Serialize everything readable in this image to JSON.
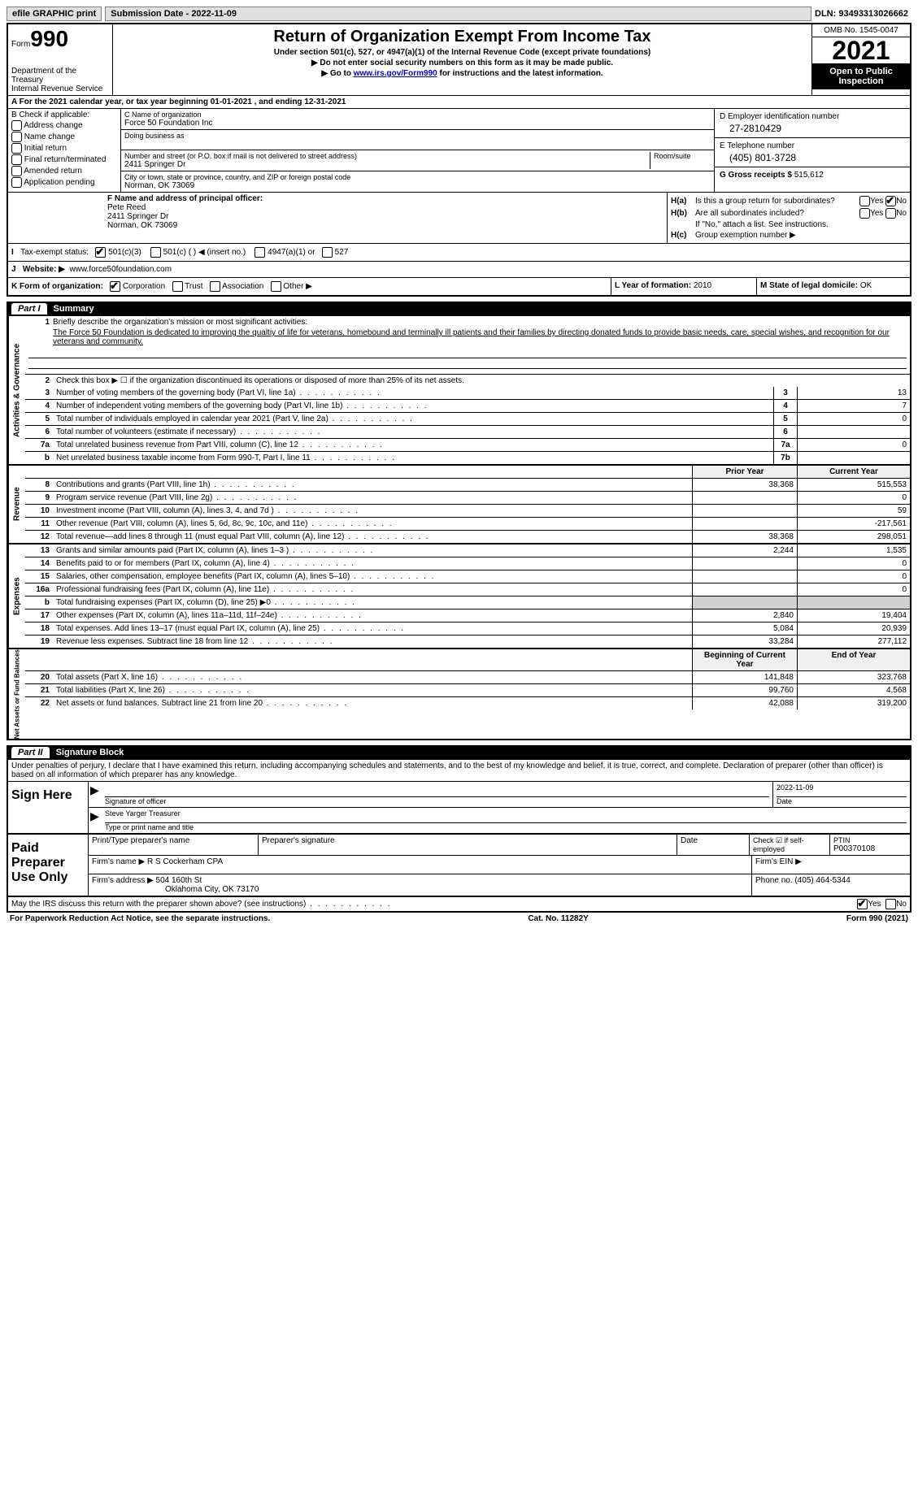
{
  "topbar": {
    "efile_label": "efile GRAPHIC print",
    "submission_label": "Submission Date - 2022-11-09",
    "dln": "DLN: 93493313026662"
  },
  "header": {
    "form_label": "Form",
    "form_number": "990",
    "dept": "Department of the Treasury",
    "irs": "Internal Revenue Service",
    "title": "Return of Organization Exempt From Income Tax",
    "subtitle": "Under section 501(c), 527, or 4947(a)(1) of the Internal Revenue Code (except private foundations)",
    "line1": "▶ Do not enter social security numbers on this form as it may be made public.",
    "line2_pre": "▶ Go to ",
    "line2_link": "www.irs.gov/Form990",
    "line2_post": " for instructions and the latest information.",
    "omb": "OMB No. 1545-0047",
    "year": "2021",
    "open": "Open to Public Inspection"
  },
  "row_a": "A For the 2021 calendar year, or tax year beginning 01-01-2021   , and ending 12-31-2021",
  "box_b": {
    "header": "B Check if applicable:",
    "items": [
      "Address change",
      "Name change",
      "Initial return",
      "Final return/terminated",
      "Amended return",
      "Application pending"
    ]
  },
  "box_c": {
    "name_label": "C Name of organization",
    "name": "Force 50 Foundation Inc",
    "dba_label": "Doing business as",
    "street_label": "Number and street (or P.O. box if mail is not delivered to street address)",
    "room_label": "Room/suite",
    "street": "2411 Springer Dr",
    "city_label": "City or town, state or province, country, and ZIP or foreign postal code",
    "city": "Norman, OK  73069"
  },
  "box_d": {
    "ein_label": "D Employer identification number",
    "ein": "27-2810429",
    "phone_label": "E Telephone number",
    "phone": "(405) 801-3728",
    "gross_label": "G Gross receipts $ ",
    "gross": "515,612"
  },
  "box_f": {
    "label": "F Name and address of principal officer:",
    "name": "Pete Reed",
    "addr1": "2411 Springer Dr",
    "addr2": "Norman, OK  73069"
  },
  "box_h": {
    "ha_label": "H(a)",
    "ha_text": "Is this a group return for subordinates?",
    "hb_label": "H(b)",
    "hb_text": "Are all subordinates included?",
    "hb_note": "If \"No,\" attach a list. See instructions.",
    "hc_label": "H(c)",
    "hc_text": "Group exemption number ▶",
    "yes": "Yes",
    "no": "No"
  },
  "row_i": {
    "label": "Tax-exempt status:",
    "opt1": "501(c)(3)",
    "opt2": "501(c) (  ) ◀ (insert no.)",
    "opt3": "4947(a)(1) or",
    "opt4": "527"
  },
  "row_j": {
    "label": "Website: ▶",
    "value": "www.force50foundation.com"
  },
  "row_k": {
    "label": "K Form of organization:",
    "opts": [
      "Corporation",
      "Trust",
      "Association",
      "Other ▶"
    ]
  },
  "row_l": {
    "label": "L Year of formation: ",
    "value": "2010"
  },
  "row_m": {
    "label": "M State of legal domicile: ",
    "value": "OK"
  },
  "part1": {
    "label": "Part I",
    "title": "Summary",
    "tab1": "Activities & Governance",
    "tab2": "Revenue",
    "tab3": "Expenses",
    "tab4": "Net Assets or Fund Balances",
    "q1": "Briefly describe the organization's mission or most significant activities:",
    "mission": "The Force 50 Foundation is dedicated to improving the qualtiy of life for veterans, homebound and terminally ill patients and their families by directing donated funds to provide basic needs, care, special wishes, and recognition for our veterans and community.",
    "q2": "Check this box ▶ ☐ if the organization discontinued its operations or disposed of more than 25% of its net assets.",
    "rows_gov": [
      {
        "n": "3",
        "t": "Number of voting members of the governing body (Part VI, line 1a)",
        "box": "3",
        "v": "13"
      },
      {
        "n": "4",
        "t": "Number of independent voting members of the governing body (Part VI, line 1b)",
        "box": "4",
        "v": "7"
      },
      {
        "n": "5",
        "t": "Total number of individuals employed in calendar year 2021 (Part V, line 2a)",
        "box": "5",
        "v": "0"
      },
      {
        "n": "6",
        "t": "Total number of volunteers (estimate if necessary)",
        "box": "6",
        "v": ""
      },
      {
        "n": "7a",
        "t": "Total unrelated business revenue from Part VIII, column (C), line 12",
        "box": "7a",
        "v": "0"
      },
      {
        "n": "b",
        "t": "Net unrelated business taxable income from Form 990-T, Part I, line 11",
        "box": "7b",
        "v": ""
      }
    ],
    "prior_year": "Prior Year",
    "current_year": "Current Year",
    "rows_rev": [
      {
        "n": "8",
        "t": "Contributions and grants (Part VIII, line 1h)",
        "py": "38,368",
        "cy": "515,553"
      },
      {
        "n": "9",
        "t": "Program service revenue (Part VIII, line 2g)",
        "py": "",
        "cy": "0"
      },
      {
        "n": "10",
        "t": "Investment income (Part VIII, column (A), lines 3, 4, and 7d )",
        "py": "",
        "cy": "59"
      },
      {
        "n": "11",
        "t": "Other revenue (Part VIII, column (A), lines 5, 6d, 8c, 9c, 10c, and 11e)",
        "py": "",
        "cy": "-217,561"
      },
      {
        "n": "12",
        "t": "Total revenue—add lines 8 through 11 (must equal Part VIII, column (A), line 12)",
        "py": "38,368",
        "cy": "298,051"
      }
    ],
    "rows_exp": [
      {
        "n": "13",
        "t": "Grants and similar amounts paid (Part IX, column (A), lines 1–3 )",
        "py": "2,244",
        "cy": "1,535"
      },
      {
        "n": "14",
        "t": "Benefits paid to or for members (Part IX, column (A), line 4)",
        "py": "",
        "cy": "0"
      },
      {
        "n": "15",
        "t": "Salaries, other compensation, employee benefits (Part IX, column (A), lines 5–10)",
        "py": "",
        "cy": "0"
      },
      {
        "n": "16a",
        "t": "Professional fundraising fees (Part IX, column (A), line 11e)",
        "py": "",
        "cy": "0"
      },
      {
        "n": "b",
        "t": "Total fundraising expenses (Part IX, column (D), line 25) ▶0",
        "py": "grey",
        "cy": "grey"
      },
      {
        "n": "17",
        "t": "Other expenses (Part IX, column (A), lines 11a–11d, 11f–24e)",
        "py": "2,840",
        "cy": "19,404"
      },
      {
        "n": "18",
        "t": "Total expenses. Add lines 13–17 (must equal Part IX, column (A), line 25)",
        "py": "5,084",
        "cy": "20,939"
      },
      {
        "n": "19",
        "t": "Revenue less expenses. Subtract line 18 from line 12",
        "py": "33,284",
        "cy": "277,112"
      }
    ],
    "beg_year": "Beginning of Current Year",
    "end_year": "End of Year",
    "rows_net": [
      {
        "n": "20",
        "t": "Total assets (Part X, line 16)",
        "py": "141,848",
        "cy": "323,768"
      },
      {
        "n": "21",
        "t": "Total liabilities (Part X, line 26)",
        "py": "99,760",
        "cy": "4,568"
      },
      {
        "n": "22",
        "t": "Net assets or fund balances. Subtract line 21 from line 20",
        "py": "42,088",
        "cy": "319,200"
      }
    ]
  },
  "part2": {
    "label": "Part II",
    "title": "Signature Block",
    "intro": "Under penalties of perjury, I declare that I have examined this return, including accompanying schedules and statements, and to the best of my knowledge and belief, it is true, correct, and complete. Declaration of preparer (other than officer) is based on all information of which preparer has any knowledge.",
    "sign_here": "Sign Here",
    "sig_officer": "Signature of officer",
    "sig_date": "2022-11-09",
    "date_label": "Date",
    "officer_name": "Steve Yarger  Treasurer",
    "type_name": "Type or print name and title",
    "paid": "Paid Preparer Use Only",
    "prep_name_label": "Print/Type preparer's name",
    "prep_sig_label": "Preparer's signature",
    "check_if": "Check ☑ if self-employed",
    "ptin_label": "PTIN",
    "ptin": "P00370108",
    "firm_name_label": "Firm's name    ▶ ",
    "firm_name": "R S Cockerham CPA",
    "firm_ein_label": "Firm's EIN ▶",
    "firm_addr_label": "Firm's address ▶ ",
    "firm_addr1": "504 160th St",
    "firm_addr2": "Oklahoma City, OK  73170",
    "phone_label": "Phone no. ",
    "phone": "(405) 464-5344"
  },
  "footer": {
    "discuss": "May the IRS discuss this return with the preparer shown above? (see instructions)",
    "yes": "Yes",
    "no": "No",
    "paperwork": "For Paperwork Reduction Act Notice, see the separate instructions.",
    "cat": "Cat. No. 11282Y",
    "form": "Form 990 (2021)"
  }
}
